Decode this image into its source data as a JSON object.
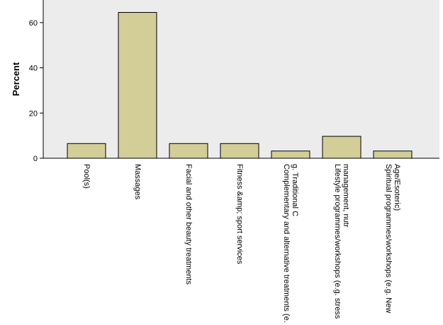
{
  "chart_data": {
    "type": "bar",
    "ylabel": "Percent",
    "ylim": [
      0,
      70
    ],
    "yticks": [
      0,
      20,
      40,
      60
    ],
    "categories": [
      [
        "Pool(s)"
      ],
      [
        "Massages"
      ],
      [
        "Facial and other beauty treatments"
      ],
      [
        "Fitness &amp; sport services"
      ],
      [
        "Complementary and alternative treatments (e.",
        "g. Traditional C"
      ],
      [
        "Lifestyle programmes/workshops (e.g. stress",
        "management, nutr"
      ],
      [
        "Spiritual programmes/workshops (e.g. New",
        "Age/Esoteric)"
      ]
    ],
    "values": [
      6.5,
      64.5,
      6.5,
      6.5,
      3.2,
      9.7,
      3.2
    ],
    "colors": {
      "plot_bg": "#ececec",
      "bar_fill": "#d3ce98",
      "bar_stroke": "#000000"
    }
  }
}
